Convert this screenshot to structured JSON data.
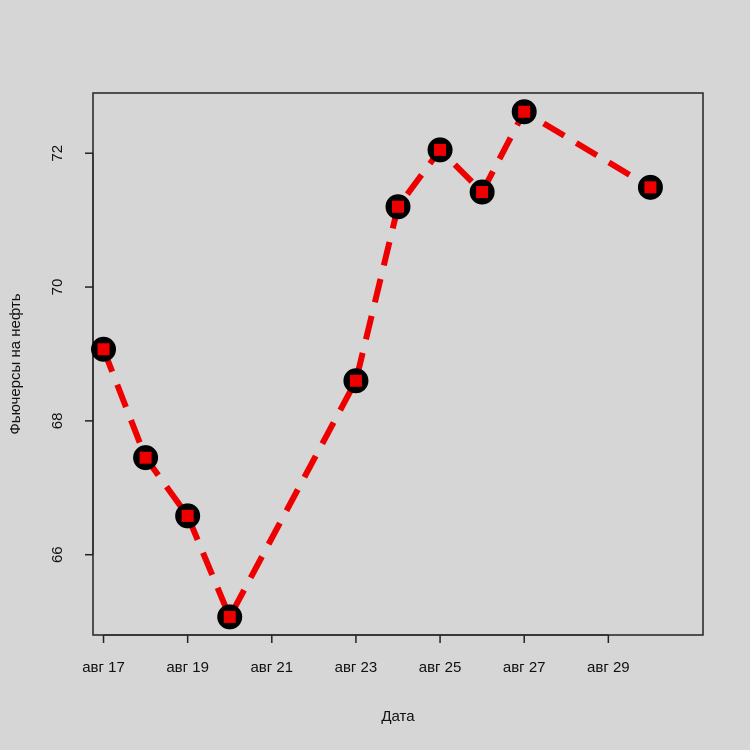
{
  "chart_data": {
    "type": "line",
    "title": "",
    "xlabel": "Дата",
    "ylabel": "Фьючерсы на нефть",
    "x": [
      "2018-08-17",
      "2018-08-18",
      "2018-08-19",
      "2018-08-20",
      "2018-08-23",
      "2018-08-24",
      "2018-08-25",
      "2018-08-26",
      "2018-08-27",
      "2018-08-30"
    ],
    "series": [
      {
        "values": [
          69.07,
          67.45,
          66.58,
          65.07,
          68.6,
          71.2,
          72.05,
          71.42,
          72.62,
          71.49
        ]
      }
    ],
    "xlim": [
      "2018-08-16T18:00",
      "2018-08-31T06:00"
    ],
    "ylim": [
      64.8,
      72.9
    ],
    "x_ticks": [
      {
        "date": "2018-08-17",
        "label": "авг 17"
      },
      {
        "date": "2018-08-19",
        "label": "авг 19"
      },
      {
        "date": "2018-08-21",
        "label": "авг 21"
      },
      {
        "date": "2018-08-23",
        "label": "авг 23"
      },
      {
        "date": "2018-08-25",
        "label": "авг 25"
      },
      {
        "date": "2018-08-27",
        "label": "авг 27"
      },
      {
        "date": "2018-08-29",
        "label": "авг 29"
      }
    ],
    "y_ticks": [
      66,
      68,
      70,
      72
    ],
    "grid": false,
    "line_style": "dashed",
    "colors": {
      "line": "#ee0000",
      "marker_outline": "#000000",
      "marker_fill": "#ee0000",
      "background": "#d6d6d6"
    }
  }
}
